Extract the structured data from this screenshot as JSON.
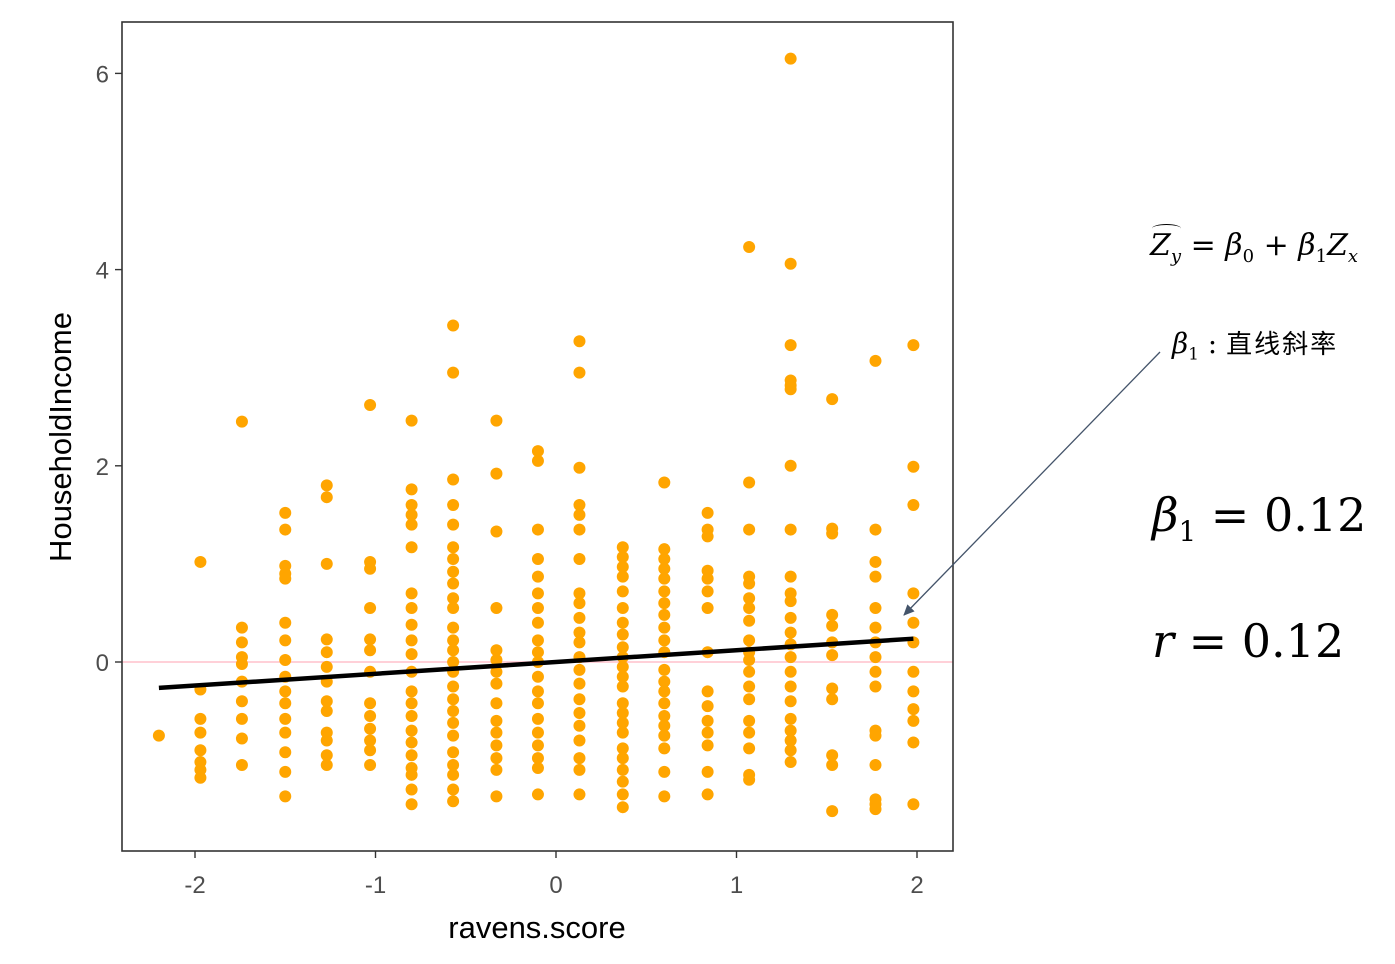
{
  "chart_data": {
    "type": "scatter",
    "xlabel": "ravens.score",
    "ylabel": "HouseholdIncome",
    "xlim": [
      -2.4,
      2.2
    ],
    "ylim": [
      -1.9,
      6.5
    ],
    "x_ticks": [
      -2,
      -1,
      0,
      1,
      2
    ],
    "y_ticks": [
      0,
      2,
      4,
      6
    ],
    "grid": false,
    "point_color": "#FFA500",
    "regression_line": {
      "slope": 0.12,
      "intercept": 0.0,
      "x_range": [
        -2.2,
        1.98
      ],
      "color": "#000000"
    },
    "reference_line": {
      "y": 0,
      "color": "#FFC0CB"
    },
    "points": [
      [
        -2.2,
        -0.75
      ],
      [
        -1.97,
        1.02
      ],
      [
        -1.97,
        -0.28
      ],
      [
        -1.97,
        -0.58
      ],
      [
        -1.97,
        -0.72
      ],
      [
        -1.97,
        -0.9
      ],
      [
        -1.97,
        -1.02
      ],
      [
        -1.97,
        -1.1
      ],
      [
        -1.97,
        -1.18
      ],
      [
        -1.74,
        2.45
      ],
      [
        -1.74,
        0.35
      ],
      [
        -1.74,
        0.2
      ],
      [
        -1.74,
        0.05
      ],
      [
        -1.74,
        -0.02
      ],
      [
        -1.74,
        -0.2
      ],
      [
        -1.74,
        -0.4
      ],
      [
        -1.74,
        -0.58
      ],
      [
        -1.74,
        -0.78
      ],
      [
        -1.74,
        -1.05
      ],
      [
        -1.5,
        1.52
      ],
      [
        -1.5,
        1.35
      ],
      [
        -1.5,
        0.98
      ],
      [
        -1.5,
        0.9
      ],
      [
        -1.5,
        0.85
      ],
      [
        -1.5,
        0.4
      ],
      [
        -1.5,
        0.22
      ],
      [
        -1.5,
        0.02
      ],
      [
        -1.5,
        -0.15
      ],
      [
        -1.5,
        -0.3
      ],
      [
        -1.5,
        -0.42
      ],
      [
        -1.5,
        -0.58
      ],
      [
        -1.5,
        -0.72
      ],
      [
        -1.5,
        -0.92
      ],
      [
        -1.5,
        -1.12
      ],
      [
        -1.5,
        -1.37
      ],
      [
        -1.27,
        1.8
      ],
      [
        -1.27,
        1.68
      ],
      [
        -1.27,
        1.0
      ],
      [
        -1.27,
        0.23
      ],
      [
        -1.27,
        0.1
      ],
      [
        -1.27,
        -0.05
      ],
      [
        -1.27,
        -0.2
      ],
      [
        -1.27,
        -0.4
      ],
      [
        -1.27,
        -0.5
      ],
      [
        -1.27,
        -0.72
      ],
      [
        -1.27,
        -0.8
      ],
      [
        -1.27,
        -0.95
      ],
      [
        -1.27,
        -1.05
      ],
      [
        -1.03,
        2.62
      ],
      [
        -1.03,
        1.02
      ],
      [
        -1.03,
        0.95
      ],
      [
        -1.03,
        0.55
      ],
      [
        -1.03,
        0.23
      ],
      [
        -1.03,
        0.12
      ],
      [
        -1.03,
        -0.1
      ],
      [
        -1.03,
        -0.42
      ],
      [
        -1.03,
        -0.55
      ],
      [
        -1.03,
        -0.68
      ],
      [
        -1.03,
        -0.8
      ],
      [
        -1.03,
        -0.9
      ],
      [
        -1.03,
        -1.05
      ],
      [
        -0.8,
        2.46
      ],
      [
        -0.8,
        1.76
      ],
      [
        -0.8,
        1.6
      ],
      [
        -0.8,
        1.5
      ],
      [
        -0.8,
        1.4
      ],
      [
        -0.8,
        1.17
      ],
      [
        -0.8,
        0.7
      ],
      [
        -0.8,
        0.55
      ],
      [
        -0.8,
        0.38
      ],
      [
        -0.8,
        0.22
      ],
      [
        -0.8,
        0.08
      ],
      [
        -0.8,
        -0.1
      ],
      [
        -0.8,
        -0.3
      ],
      [
        -0.8,
        -0.42
      ],
      [
        -0.8,
        -0.55
      ],
      [
        -0.8,
        -0.7
      ],
      [
        -0.8,
        -0.82
      ],
      [
        -0.8,
        -0.95
      ],
      [
        -0.8,
        -1.08
      ],
      [
        -0.8,
        -1.15
      ],
      [
        -0.8,
        -1.3
      ],
      [
        -0.8,
        -1.45
      ],
      [
        -0.57,
        3.43
      ],
      [
        -0.57,
        2.95
      ],
      [
        -0.57,
        1.86
      ],
      [
        -0.57,
        1.6
      ],
      [
        -0.57,
        1.4
      ],
      [
        -0.57,
        1.17
      ],
      [
        -0.57,
        1.05
      ],
      [
        -0.57,
        0.92
      ],
      [
        -0.57,
        0.8
      ],
      [
        -0.57,
        0.65
      ],
      [
        -0.57,
        0.55
      ],
      [
        -0.57,
        0.35
      ],
      [
        -0.57,
        0.22
      ],
      [
        -0.57,
        0.12
      ],
      [
        -0.57,
        0.0
      ],
      [
        -0.57,
        -0.1
      ],
      [
        -0.57,
        -0.25
      ],
      [
        -0.57,
        -0.38
      ],
      [
        -0.57,
        -0.5
      ],
      [
        -0.57,
        -0.62
      ],
      [
        -0.57,
        -0.75
      ],
      [
        -0.57,
        -0.92
      ],
      [
        -0.57,
        -1.05
      ],
      [
        -0.57,
        -1.15
      ],
      [
        -0.57,
        -1.3
      ],
      [
        -0.57,
        -1.42
      ],
      [
        -0.33,
        2.46
      ],
      [
        -0.33,
        1.92
      ],
      [
        -0.33,
        1.33
      ],
      [
        -0.33,
        0.55
      ],
      [
        -0.33,
        0.12
      ],
      [
        -0.33,
        0.02
      ],
      [
        -0.33,
        -0.1
      ],
      [
        -0.33,
        -0.22
      ],
      [
        -0.33,
        -0.42
      ],
      [
        -0.33,
        -0.6
      ],
      [
        -0.33,
        -0.72
      ],
      [
        -0.33,
        -0.85
      ],
      [
        -0.33,
        -0.98
      ],
      [
        -0.33,
        -1.1
      ],
      [
        -0.33,
        -1.37
      ],
      [
        -0.1,
        2.15
      ],
      [
        -0.1,
        2.05
      ],
      [
        -0.1,
        1.35
      ],
      [
        -0.1,
        1.05
      ],
      [
        -0.1,
        0.87
      ],
      [
        -0.1,
        0.7
      ],
      [
        -0.1,
        0.55
      ],
      [
        -0.1,
        0.4
      ],
      [
        -0.1,
        0.22
      ],
      [
        -0.1,
        0.1
      ],
      [
        -0.1,
        0.0
      ],
      [
        -0.1,
        -0.15
      ],
      [
        -0.1,
        -0.3
      ],
      [
        -0.1,
        -0.42
      ],
      [
        -0.1,
        -0.58
      ],
      [
        -0.1,
        -0.72
      ],
      [
        -0.1,
        -0.85
      ],
      [
        -0.1,
        -0.98
      ],
      [
        -0.1,
        -1.08
      ],
      [
        -0.1,
        -1.35
      ],
      [
        0.13,
        3.27
      ],
      [
        0.13,
        2.95
      ],
      [
        0.13,
        1.98
      ],
      [
        0.13,
        1.6
      ],
      [
        0.13,
        1.5
      ],
      [
        0.13,
        1.35
      ],
      [
        0.13,
        1.05
      ],
      [
        0.13,
        0.7
      ],
      [
        0.13,
        0.6
      ],
      [
        0.13,
        0.45
      ],
      [
        0.13,
        0.3
      ],
      [
        0.13,
        0.2
      ],
      [
        0.13,
        0.05
      ],
      [
        0.13,
        -0.08
      ],
      [
        0.13,
        -0.22
      ],
      [
        0.13,
        -0.38
      ],
      [
        0.13,
        -0.52
      ],
      [
        0.13,
        -0.65
      ],
      [
        0.13,
        -0.8
      ],
      [
        0.13,
        -0.98
      ],
      [
        0.13,
        -1.1
      ],
      [
        0.13,
        -1.35
      ],
      [
        0.37,
        1.17
      ],
      [
        0.37,
        1.07
      ],
      [
        0.37,
        0.97
      ],
      [
        0.37,
        0.87
      ],
      [
        0.37,
        0.72
      ],
      [
        0.37,
        0.55
      ],
      [
        0.37,
        0.4
      ],
      [
        0.37,
        0.28
      ],
      [
        0.37,
        0.15
      ],
      [
        0.37,
        0.05
      ],
      [
        0.37,
        -0.05
      ],
      [
        0.37,
        -0.15
      ],
      [
        0.37,
        -0.25
      ],
      [
        0.37,
        -0.42
      ],
      [
        0.37,
        -0.52
      ],
      [
        0.37,
        -0.62
      ],
      [
        0.37,
        -0.72
      ],
      [
        0.37,
        -0.88
      ],
      [
        0.37,
        -0.98
      ],
      [
        0.37,
        -1.1
      ],
      [
        0.37,
        -1.22
      ],
      [
        0.37,
        -1.35
      ],
      [
        0.37,
        -1.48
      ],
      [
        0.6,
        1.83
      ],
      [
        0.6,
        1.15
      ],
      [
        0.6,
        1.05
      ],
      [
        0.6,
        0.95
      ],
      [
        0.6,
        0.85
      ],
      [
        0.6,
        0.72
      ],
      [
        0.6,
        0.6
      ],
      [
        0.6,
        0.48
      ],
      [
        0.6,
        0.35
      ],
      [
        0.6,
        0.22
      ],
      [
        0.6,
        0.1
      ],
      [
        0.6,
        -0.08
      ],
      [
        0.6,
        -0.2
      ],
      [
        0.6,
        -0.3
      ],
      [
        0.6,
        -0.42
      ],
      [
        0.6,
        -0.55
      ],
      [
        0.6,
        -0.65
      ],
      [
        0.6,
        -0.75
      ],
      [
        0.6,
        -0.88
      ],
      [
        0.6,
        -1.12
      ],
      [
        0.6,
        -1.37
      ],
      [
        0.84,
        1.52
      ],
      [
        0.84,
        1.35
      ],
      [
        0.84,
        1.28
      ],
      [
        0.84,
        0.93
      ],
      [
        0.84,
        0.85
      ],
      [
        0.84,
        0.72
      ],
      [
        0.84,
        0.55
      ],
      [
        0.84,
        0.1
      ],
      [
        0.84,
        -0.3
      ],
      [
        0.84,
        -0.45
      ],
      [
        0.84,
        -0.6
      ],
      [
        0.84,
        -0.72
      ],
      [
        0.84,
        -0.85
      ],
      [
        0.84,
        -1.12
      ],
      [
        0.84,
        -1.35
      ],
      [
        1.07,
        4.23
      ],
      [
        1.07,
        1.83
      ],
      [
        1.07,
        1.35
      ],
      [
        1.07,
        0.87
      ],
      [
        1.07,
        0.8
      ],
      [
        1.07,
        0.65
      ],
      [
        1.07,
        0.55
      ],
      [
        1.07,
        0.42
      ],
      [
        1.07,
        0.22
      ],
      [
        1.07,
        0.1
      ],
      [
        1.07,
        0.02
      ],
      [
        1.07,
        -0.1
      ],
      [
        1.07,
        -0.25
      ],
      [
        1.07,
        -0.38
      ],
      [
        1.07,
        -0.6
      ],
      [
        1.07,
        -0.72
      ],
      [
        1.07,
        -0.88
      ],
      [
        1.07,
        -1.15
      ],
      [
        1.07,
        -1.2
      ],
      [
        1.3,
        6.15
      ],
      [
        1.3,
        4.06
      ],
      [
        1.3,
        3.23
      ],
      [
        1.3,
        2.87
      ],
      [
        1.3,
        2.82
      ],
      [
        1.3,
        2.78
      ],
      [
        1.3,
        2.0
      ],
      [
        1.3,
        1.35
      ],
      [
        1.3,
        0.87
      ],
      [
        1.3,
        0.7
      ],
      [
        1.3,
        0.62
      ],
      [
        1.3,
        0.45
      ],
      [
        1.3,
        0.3
      ],
      [
        1.3,
        0.18
      ],
      [
        1.3,
        0.05
      ],
      [
        1.3,
        -0.1
      ],
      [
        1.3,
        -0.25
      ],
      [
        1.3,
        -0.4
      ],
      [
        1.3,
        -0.58
      ],
      [
        1.3,
        -0.7
      ],
      [
        1.3,
        -0.8
      ],
      [
        1.3,
        -0.9
      ],
      [
        1.3,
        -1.02
      ],
      [
        1.53,
        2.68
      ],
      [
        1.53,
        1.36
      ],
      [
        1.53,
        1.31
      ],
      [
        1.53,
        0.48
      ],
      [
        1.53,
        0.37
      ],
      [
        1.53,
        0.2
      ],
      [
        1.53,
        0.07
      ],
      [
        1.53,
        -0.27
      ],
      [
        1.53,
        -0.38
      ],
      [
        1.53,
        -0.95
      ],
      [
        1.53,
        -1.05
      ],
      [
        1.53,
        -1.52
      ],
      [
        1.77,
        3.07
      ],
      [
        1.77,
        1.35
      ],
      [
        1.77,
        1.02
      ],
      [
        1.77,
        0.87
      ],
      [
        1.77,
        0.55
      ],
      [
        1.77,
        0.35
      ],
      [
        1.77,
        0.2
      ],
      [
        1.77,
        0.05
      ],
      [
        1.77,
        -0.1
      ],
      [
        1.77,
        -0.25
      ],
      [
        1.77,
        -0.7
      ],
      [
        1.77,
        -0.75
      ],
      [
        1.77,
        -1.05
      ],
      [
        1.77,
        -1.4
      ],
      [
        1.77,
        -1.45
      ],
      [
        1.77,
        -1.5
      ],
      [
        1.98,
        3.23
      ],
      [
        1.98,
        1.99
      ],
      [
        1.98,
        1.6
      ],
      [
        1.98,
        0.7
      ],
      [
        1.98,
        0.4
      ],
      [
        1.98,
        0.2
      ],
      [
        1.98,
        -0.1
      ],
      [
        1.98,
        -0.3
      ],
      [
        1.98,
        -0.48
      ],
      [
        1.98,
        -0.6
      ],
      [
        1.98,
        -0.82
      ],
      [
        1.98,
        -1.45
      ]
    ]
  },
  "annotations": {
    "equation": {
      "lhs_base": "Z",
      "lhs_sub": "y",
      "eq": " = ",
      "b0": "β",
      "b0_sub": "0",
      "plus": " + ",
      "b1": "β",
      "b1_sub": "1",
      "zx": "Z",
      "zx_sub": "x"
    },
    "beta_note": {
      "beta": "β",
      "sub": "1",
      "colon": " : ",
      "text": "直线斜率"
    },
    "beta_stat": {
      "sym": "β",
      "sub": "1",
      "rest": " = 0.12"
    },
    "r_stat": {
      "sym": "r",
      "rest": " = 0.12"
    }
  }
}
